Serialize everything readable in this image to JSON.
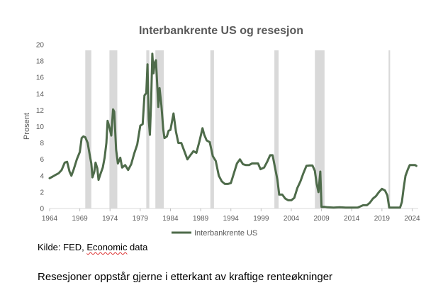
{
  "chart_data": {
    "type": "line",
    "title": "Interbankrente US og resesjon",
    "xlabel": "",
    "ylabel": "Prosent",
    "xlim": [
      1964,
      2025
    ],
    "ylim": [
      0,
      20
    ],
    "y_ticks": [
      0,
      2,
      4,
      6,
      8,
      10,
      12,
      14,
      16,
      18,
      20
    ],
    "x_ticks": [
      1964,
      1969,
      1974,
      1979,
      1984,
      1989,
      1994,
      1999,
      2004,
      2009,
      2014,
      2019,
      2024
    ],
    "grid": false,
    "legend": "bottom",
    "line_color": "#4e6b4a",
    "band_color": "#d9d9d9",
    "recessions": [
      [
        1969.9,
        1970.9
      ],
      [
        1973.9,
        1975.2
      ],
      [
        1980.0,
        1980.5
      ],
      [
        1981.5,
        1982.9
      ],
      [
        1990.6,
        1991.2
      ],
      [
        2001.2,
        2001.9
      ],
      [
        2007.9,
        2009.5
      ],
      [
        2020.1,
        2020.35
      ]
    ],
    "series": [
      {
        "name": "Interbankrente US",
        "points": [
          [
            1964.0,
            3.7
          ],
          [
            1964.5,
            3.9
          ],
          [
            1965.0,
            4.1
          ],
          [
            1965.5,
            4.3
          ],
          [
            1966.0,
            4.7
          ],
          [
            1966.5,
            5.6
          ],
          [
            1966.9,
            5.7
          ],
          [
            1967.3,
            4.5
          ],
          [
            1967.6,
            4.0
          ],
          [
            1968.0,
            4.8
          ],
          [
            1968.5,
            6.0
          ],
          [
            1969.0,
            6.9
          ],
          [
            1969.3,
            8.6
          ],
          [
            1969.6,
            8.8
          ],
          [
            1969.9,
            8.7
          ],
          [
            1970.3,
            8.0
          ],
          [
            1970.6,
            6.7
          ],
          [
            1970.9,
            5.5
          ],
          [
            1971.1,
            3.8
          ],
          [
            1971.4,
            4.5
          ],
          [
            1971.6,
            5.6
          ],
          [
            1971.9,
            4.9
          ],
          [
            1972.1,
            3.5
          ],
          [
            1972.5,
            4.4
          ],
          [
            1972.8,
            5.0
          ],
          [
            1973.1,
            6.2
          ],
          [
            1973.4,
            8.0
          ],
          [
            1973.6,
            10.7
          ],
          [
            1973.9,
            9.9
          ],
          [
            1974.2,
            8.9
          ],
          [
            1974.5,
            12.1
          ],
          [
            1974.7,
            11.8
          ],
          [
            1975.0,
            7.2
          ],
          [
            1975.3,
            5.5
          ],
          [
            1975.7,
            6.2
          ],
          [
            1976.0,
            5.0
          ],
          [
            1976.5,
            5.3
          ],
          [
            1977.0,
            4.7
          ],
          [
            1977.5,
            5.4
          ],
          [
            1978.0,
            6.7
          ],
          [
            1978.5,
            7.8
          ],
          [
            1979.0,
            10.1
          ],
          [
            1979.4,
            10.3
          ],
          [
            1979.7,
            13.8
          ],
          [
            1980.0,
            14.1
          ],
          [
            1980.2,
            17.6
          ],
          [
            1980.4,
            10.9
          ],
          [
            1980.6,
            9.0
          ],
          [
            1980.8,
            13.0
          ],
          [
            1981.0,
            18.9
          ],
          [
            1981.2,
            16.5
          ],
          [
            1981.4,
            17.8
          ],
          [
            1981.6,
            18.1
          ],
          [
            1981.8,
            15.3
          ],
          [
            1982.0,
            12.4
          ],
          [
            1982.2,
            14.7
          ],
          [
            1982.5,
            12.6
          ],
          [
            1982.8,
            9.7
          ],
          [
            1983.0,
            8.6
          ],
          [
            1983.4,
            8.8
          ],
          [
            1983.7,
            9.5
          ],
          [
            1984.0,
            9.6
          ],
          [
            1984.5,
            11.6
          ],
          [
            1984.9,
            9.4
          ],
          [
            1985.3,
            8.0
          ],
          [
            1985.8,
            8.0
          ],
          [
            1986.3,
            7.0
          ],
          [
            1986.8,
            6.0
          ],
          [
            1987.3,
            6.5
          ],
          [
            1987.8,
            7.0
          ],
          [
            1988.3,
            6.8
          ],
          [
            1988.8,
            8.2
          ],
          [
            1989.3,
            9.8
          ],
          [
            1989.6,
            9.0
          ],
          [
            1990.0,
            8.3
          ],
          [
            1990.5,
            8.1
          ],
          [
            1991.0,
            6.4
          ],
          [
            1991.5,
            5.8
          ],
          [
            1992.0,
            4.0
          ],
          [
            1992.5,
            3.3
          ],
          [
            1993.0,
            3.0
          ],
          [
            1993.5,
            3.0
          ],
          [
            1994.0,
            3.1
          ],
          [
            1994.5,
            4.3
          ],
          [
            1995.0,
            5.5
          ],
          [
            1995.5,
            6.0
          ],
          [
            1996.0,
            5.4
          ],
          [
            1996.5,
            5.3
          ],
          [
            1997.0,
            5.3
          ],
          [
            1997.5,
            5.5
          ],
          [
            1998.0,
            5.5
          ],
          [
            1998.5,
            5.5
          ],
          [
            1998.9,
            4.8
          ],
          [
            1999.5,
            5.0
          ],
          [
            2000.0,
            5.7
          ],
          [
            2000.5,
            6.5
          ],
          [
            2000.9,
            6.5
          ],
          [
            2001.3,
            5.0
          ],
          [
            2001.7,
            3.5
          ],
          [
            2002.0,
            1.7
          ],
          [
            2002.5,
            1.7
          ],
          [
            2003.0,
            1.2
          ],
          [
            2003.5,
            1.0
          ],
          [
            2004.0,
            1.0
          ],
          [
            2004.5,
            1.3
          ],
          [
            2005.0,
            2.5
          ],
          [
            2005.5,
            3.3
          ],
          [
            2006.0,
            4.3
          ],
          [
            2006.5,
            5.2
          ],
          [
            2007.0,
            5.25
          ],
          [
            2007.5,
            5.25
          ],
          [
            2007.9,
            4.6
          ],
          [
            2008.2,
            3.0
          ],
          [
            2008.5,
            2.0
          ],
          [
            2008.8,
            4.5
          ],
          [
            2009.0,
            0.2
          ],
          [
            2009.5,
            0.2
          ],
          [
            2010.0,
            0.15
          ],
          [
            2011.0,
            0.1
          ],
          [
            2012.0,
            0.15
          ],
          [
            2013.0,
            0.1
          ],
          [
            2014.0,
            0.1
          ],
          [
            2015.0,
            0.12
          ],
          [
            2015.9,
            0.4
          ],
          [
            2016.5,
            0.4
          ],
          [
            2017.0,
            0.7
          ],
          [
            2017.5,
            1.2
          ],
          [
            2018.0,
            1.5
          ],
          [
            2018.5,
            2.0
          ],
          [
            2019.0,
            2.4
          ],
          [
            2019.5,
            2.2
          ],
          [
            2019.9,
            1.6
          ],
          [
            2020.2,
            0.1
          ],
          [
            2020.5,
            0.1
          ],
          [
            2021.5,
            0.1
          ],
          [
            2022.0,
            0.1
          ],
          [
            2022.3,
            0.8
          ],
          [
            2022.6,
            2.5
          ],
          [
            2022.9,
            4.0
          ],
          [
            2023.3,
            4.8
          ],
          [
            2023.6,
            5.3
          ],
          [
            2024.0,
            5.3
          ],
          [
            2024.5,
            5.3
          ],
          [
            2024.7,
            5.2
          ]
        ]
      }
    ]
  },
  "source": {
    "prefix": "Kilde: FED, ",
    "underlined": "Economic",
    "suffix": " data"
  },
  "caption": "Resesjoner oppstår gjerne i etterkant av kraftige renteøkninger"
}
